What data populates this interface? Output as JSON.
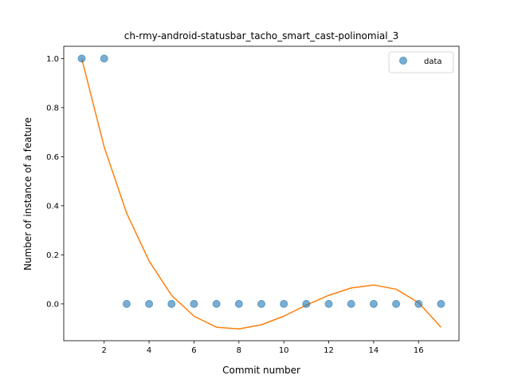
{
  "chart_data": {
    "type": "scatter",
    "title": "ch-rmy-android-statusbar_tacho_smart_cast-polinomial_3",
    "xlabel": "Commit number",
    "ylabel": "Number of instance of a feature",
    "xlim": [
      0.2,
      17.8
    ],
    "ylim": [
      -0.15,
      1.05
    ],
    "xticks": [
      2,
      4,
      6,
      8,
      10,
      12,
      14,
      16
    ],
    "yticks": [
      0.0,
      0.2,
      0.4,
      0.6,
      0.8,
      1.0
    ],
    "xtick_labels": [
      "2",
      "4",
      "6",
      "8",
      "10",
      "12",
      "14",
      "16"
    ],
    "ytick_labels": [
      "0.0",
      "0.2",
      "0.4",
      "0.6",
      "0.8",
      "1.0"
    ],
    "grid": false,
    "legend_position": "top-right",
    "series": [
      {
        "name": "data",
        "kind": "scatter",
        "color": "#1f77b4",
        "x": [
          1,
          2,
          3,
          4,
          5,
          6,
          7,
          8,
          9,
          10,
          11,
          12,
          13,
          14,
          15,
          16,
          17
        ],
        "y": [
          1,
          1,
          0,
          0,
          0,
          0,
          0,
          0,
          0,
          0,
          0,
          0,
          0,
          0,
          0,
          0,
          0
        ]
      },
      {
        "kind": "line",
        "color": "#ff7f0e",
        "x": [
          1,
          2,
          3,
          4,
          5,
          6,
          7,
          8,
          9,
          10,
          11,
          12,
          13,
          14,
          15,
          16,
          17
        ],
        "y": [
          1.0,
          0.64,
          0.37,
          0.175,
          0.035,
          -0.05,
          -0.095,
          -0.102,
          -0.085,
          -0.05,
          -0.005,
          0.035,
          0.065,
          0.077,
          0.06,
          0.005,
          -0.095
        ]
      }
    ]
  }
}
